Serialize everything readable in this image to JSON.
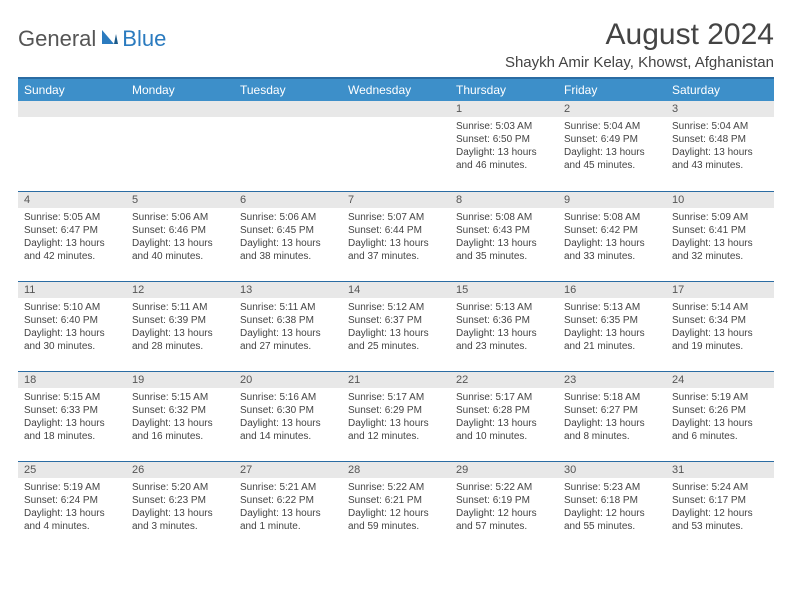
{
  "logo": {
    "textA": "General",
    "textB": "Blue"
  },
  "title": "August 2024",
  "location": "Shaykh Amir Kelay, Khowst, Afghanistan",
  "colors": {
    "header_bg": "#3d8fc9",
    "header_border": "#2b6ca3",
    "daynum_bg": "#e8e8e8",
    "text": "#444444",
    "logo_blue": "#2b7bbf"
  },
  "weekdays": [
    "Sunday",
    "Monday",
    "Tuesday",
    "Wednesday",
    "Thursday",
    "Friday",
    "Saturday"
  ],
  "weeks": [
    [
      null,
      null,
      null,
      null,
      {
        "n": "1",
        "sr": "Sunrise: 5:03 AM",
        "ss": "Sunset: 6:50 PM",
        "dl1": "Daylight: 13 hours",
        "dl2": "and 46 minutes."
      },
      {
        "n": "2",
        "sr": "Sunrise: 5:04 AM",
        "ss": "Sunset: 6:49 PM",
        "dl1": "Daylight: 13 hours",
        "dl2": "and 45 minutes."
      },
      {
        "n": "3",
        "sr": "Sunrise: 5:04 AM",
        "ss": "Sunset: 6:48 PM",
        "dl1": "Daylight: 13 hours",
        "dl2": "and 43 minutes."
      }
    ],
    [
      {
        "n": "4",
        "sr": "Sunrise: 5:05 AM",
        "ss": "Sunset: 6:47 PM",
        "dl1": "Daylight: 13 hours",
        "dl2": "and 42 minutes."
      },
      {
        "n": "5",
        "sr": "Sunrise: 5:06 AM",
        "ss": "Sunset: 6:46 PM",
        "dl1": "Daylight: 13 hours",
        "dl2": "and 40 minutes."
      },
      {
        "n": "6",
        "sr": "Sunrise: 5:06 AM",
        "ss": "Sunset: 6:45 PM",
        "dl1": "Daylight: 13 hours",
        "dl2": "and 38 minutes."
      },
      {
        "n": "7",
        "sr": "Sunrise: 5:07 AM",
        "ss": "Sunset: 6:44 PM",
        "dl1": "Daylight: 13 hours",
        "dl2": "and 37 minutes."
      },
      {
        "n": "8",
        "sr": "Sunrise: 5:08 AM",
        "ss": "Sunset: 6:43 PM",
        "dl1": "Daylight: 13 hours",
        "dl2": "and 35 minutes."
      },
      {
        "n": "9",
        "sr": "Sunrise: 5:08 AM",
        "ss": "Sunset: 6:42 PM",
        "dl1": "Daylight: 13 hours",
        "dl2": "and 33 minutes."
      },
      {
        "n": "10",
        "sr": "Sunrise: 5:09 AM",
        "ss": "Sunset: 6:41 PM",
        "dl1": "Daylight: 13 hours",
        "dl2": "and 32 minutes."
      }
    ],
    [
      {
        "n": "11",
        "sr": "Sunrise: 5:10 AM",
        "ss": "Sunset: 6:40 PM",
        "dl1": "Daylight: 13 hours",
        "dl2": "and 30 minutes."
      },
      {
        "n": "12",
        "sr": "Sunrise: 5:11 AM",
        "ss": "Sunset: 6:39 PM",
        "dl1": "Daylight: 13 hours",
        "dl2": "and 28 minutes."
      },
      {
        "n": "13",
        "sr": "Sunrise: 5:11 AM",
        "ss": "Sunset: 6:38 PM",
        "dl1": "Daylight: 13 hours",
        "dl2": "and 27 minutes."
      },
      {
        "n": "14",
        "sr": "Sunrise: 5:12 AM",
        "ss": "Sunset: 6:37 PM",
        "dl1": "Daylight: 13 hours",
        "dl2": "and 25 minutes."
      },
      {
        "n": "15",
        "sr": "Sunrise: 5:13 AM",
        "ss": "Sunset: 6:36 PM",
        "dl1": "Daylight: 13 hours",
        "dl2": "and 23 minutes."
      },
      {
        "n": "16",
        "sr": "Sunrise: 5:13 AM",
        "ss": "Sunset: 6:35 PM",
        "dl1": "Daylight: 13 hours",
        "dl2": "and 21 minutes."
      },
      {
        "n": "17",
        "sr": "Sunrise: 5:14 AM",
        "ss": "Sunset: 6:34 PM",
        "dl1": "Daylight: 13 hours",
        "dl2": "and 19 minutes."
      }
    ],
    [
      {
        "n": "18",
        "sr": "Sunrise: 5:15 AM",
        "ss": "Sunset: 6:33 PM",
        "dl1": "Daylight: 13 hours",
        "dl2": "and 18 minutes."
      },
      {
        "n": "19",
        "sr": "Sunrise: 5:15 AM",
        "ss": "Sunset: 6:32 PM",
        "dl1": "Daylight: 13 hours",
        "dl2": "and 16 minutes."
      },
      {
        "n": "20",
        "sr": "Sunrise: 5:16 AM",
        "ss": "Sunset: 6:30 PM",
        "dl1": "Daylight: 13 hours",
        "dl2": "and 14 minutes."
      },
      {
        "n": "21",
        "sr": "Sunrise: 5:17 AM",
        "ss": "Sunset: 6:29 PM",
        "dl1": "Daylight: 13 hours",
        "dl2": "and 12 minutes."
      },
      {
        "n": "22",
        "sr": "Sunrise: 5:17 AM",
        "ss": "Sunset: 6:28 PM",
        "dl1": "Daylight: 13 hours",
        "dl2": "and 10 minutes."
      },
      {
        "n": "23",
        "sr": "Sunrise: 5:18 AM",
        "ss": "Sunset: 6:27 PM",
        "dl1": "Daylight: 13 hours",
        "dl2": "and 8 minutes."
      },
      {
        "n": "24",
        "sr": "Sunrise: 5:19 AM",
        "ss": "Sunset: 6:26 PM",
        "dl1": "Daylight: 13 hours",
        "dl2": "and 6 minutes."
      }
    ],
    [
      {
        "n": "25",
        "sr": "Sunrise: 5:19 AM",
        "ss": "Sunset: 6:24 PM",
        "dl1": "Daylight: 13 hours",
        "dl2": "and 4 minutes."
      },
      {
        "n": "26",
        "sr": "Sunrise: 5:20 AM",
        "ss": "Sunset: 6:23 PM",
        "dl1": "Daylight: 13 hours",
        "dl2": "and 3 minutes."
      },
      {
        "n": "27",
        "sr": "Sunrise: 5:21 AM",
        "ss": "Sunset: 6:22 PM",
        "dl1": "Daylight: 13 hours",
        "dl2": "and 1 minute."
      },
      {
        "n": "28",
        "sr": "Sunrise: 5:22 AM",
        "ss": "Sunset: 6:21 PM",
        "dl1": "Daylight: 12 hours",
        "dl2": "and 59 minutes."
      },
      {
        "n": "29",
        "sr": "Sunrise: 5:22 AM",
        "ss": "Sunset: 6:19 PM",
        "dl1": "Daylight: 12 hours",
        "dl2": "and 57 minutes."
      },
      {
        "n": "30",
        "sr": "Sunrise: 5:23 AM",
        "ss": "Sunset: 6:18 PM",
        "dl1": "Daylight: 12 hours",
        "dl2": "and 55 minutes."
      },
      {
        "n": "31",
        "sr": "Sunrise: 5:24 AM",
        "ss": "Sunset: 6:17 PM",
        "dl1": "Daylight: 12 hours",
        "dl2": "and 53 minutes."
      }
    ]
  ]
}
